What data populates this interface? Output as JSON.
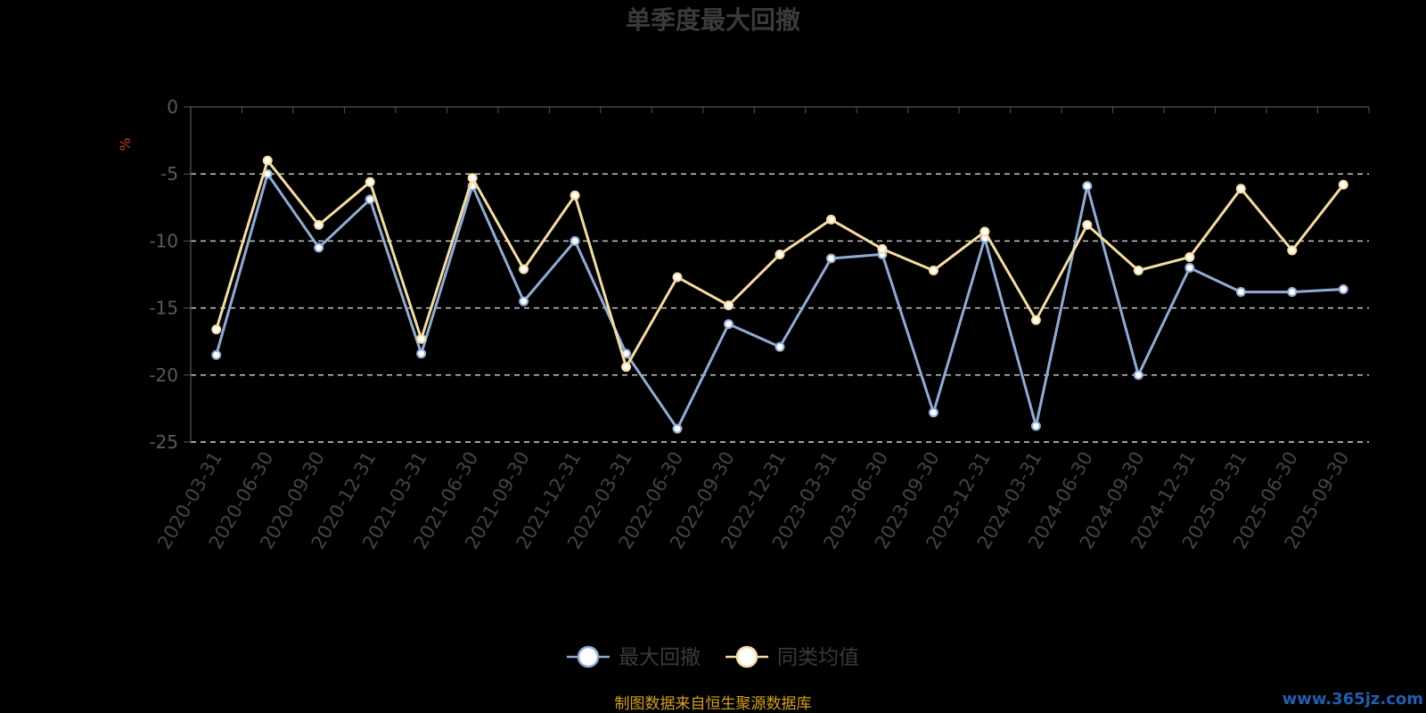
{
  "chart_data": {
    "type": "line",
    "title": "单季度最大回撤",
    "ylabel": "%",
    "ylim": [
      -25,
      0
    ],
    "yticks": [
      0,
      -5,
      -10,
      -15,
      -20,
      -25
    ],
    "grid": true,
    "legend_position": "bottom",
    "categories": [
      "2020-03-31",
      "2020-06-30",
      "2020-09-30",
      "2020-12-31",
      "2021-03-31",
      "2021-06-30",
      "2021-09-30",
      "2021-12-31",
      "2022-03-31",
      "2022-06-30",
      "2022-09-30",
      "2022-12-31",
      "2023-03-31",
      "2023-06-30",
      "2023-09-30",
      "2023-12-31",
      "2024-03-31",
      "2024-06-30",
      "2024-09-30",
      "2024-12-31",
      "2025-03-31",
      "2025-06-30",
      "2025-09-30"
    ],
    "series": [
      {
        "name": "最大回撤",
        "color": "#8eacd6",
        "values": [
          -18.5,
          -5.0,
          -10.5,
          -6.9,
          -18.4,
          -5.9,
          -14.5,
          -10.0,
          -18.4,
          -24.0,
          -16.2,
          -17.9,
          -11.3,
          -11.0,
          -22.8,
          -9.8,
          -23.8,
          -5.9,
          -20.0,
          -12.0,
          -13.8,
          -13.8,
          -13.6
        ]
      },
      {
        "name": "同类均值",
        "color": "#f7dc9f",
        "values": [
          -16.6,
          -4.0,
          -8.8,
          -5.6,
          -17.3,
          -5.3,
          -12.1,
          -6.6,
          -19.4,
          -12.7,
          -14.8,
          -11.0,
          -8.4,
          -10.6,
          -12.2,
          -9.3,
          -15.9,
          -8.8,
          -12.2,
          -11.2,
          -6.1,
          -10.7,
          -5.8
        ]
      }
    ]
  },
  "footer": {
    "source": "制图数据来自恒生聚源数据库",
    "watermark": "www.365jz.com"
  }
}
